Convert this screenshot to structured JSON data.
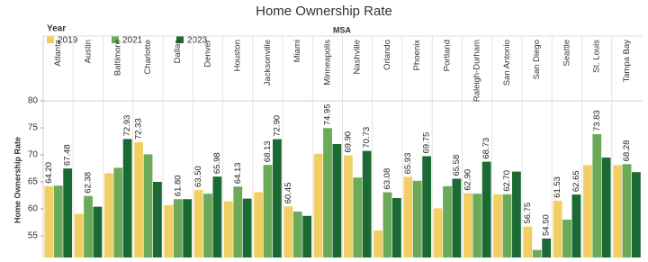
{
  "chart_data": {
    "type": "bar",
    "title": "Home Ownership Rate",
    "legend_title": "Year",
    "column_header": "MSA",
    "y_label": "Home Ownership Rate",
    "categories": [
      "Atlanta",
      "Austin",
      "Baltimore",
      "Charlotte",
      "Dallas",
      "Denver",
      "Houston",
      "Jacksonville",
      "Miami",
      "Minneapolis",
      "Nashville",
      "Orlando",
      "Phoenix",
      "Portland",
      "Raleigh-Durham",
      "San Antonio",
      "San Diego",
      "Seattle",
      "St. Louis",
      "Tampa Bay"
    ],
    "series": [
      {
        "name": "2019",
        "color": "#f2cf63",
        "values": [
          64.2,
          59.1,
          66.6,
          72.33,
          60.7,
          63.5,
          61.4,
          63.1,
          60.45,
          70.2,
          69.9,
          56.0,
          65.93,
          60.1,
          62.9,
          62.7,
          56.75,
          61.53,
          68.1,
          68.1
        ],
        "value_labels": [
          "64.20",
          null,
          null,
          "72.33",
          null,
          "63.50",
          null,
          null,
          "60.45",
          null,
          "69.90",
          null,
          "65.93",
          null,
          "62.90",
          null,
          "56.75",
          "61.53",
          null,
          null
        ]
      },
      {
        "name": "2021",
        "color": "#6aaa58",
        "values": [
          64.3,
          62.38,
          67.6,
          70.1,
          61.8,
          62.8,
          64.13,
          68.13,
          59.5,
          74.95,
          65.8,
          63.08,
          65.2,
          64.2,
          62.8,
          62.7,
          52.4,
          58.0,
          73.83,
          68.28
        ],
        "value_labels": [
          null,
          "62.38",
          null,
          null,
          "61.80",
          null,
          "64.13",
          "68.13",
          null,
          "74.95",
          null,
          "63.08",
          null,
          null,
          null,
          "62.70",
          null,
          null,
          "73.83",
          "68.28"
        ]
      },
      {
        "name": "2023",
        "color": "#1b6a33",
        "values": [
          67.48,
          60.4,
          72.93,
          65.0,
          61.8,
          65.98,
          61.9,
          72.9,
          58.7,
          72.0,
          70.73,
          62.0,
          69.75,
          65.58,
          68.73,
          66.9,
          54.5,
          62.65,
          69.5,
          66.8
        ],
        "value_labels": [
          "67.48",
          null,
          "72.93",
          null,
          null,
          "65.98",
          null,
          "72.90",
          null,
          null,
          "70.73",
          null,
          "69.75",
          "65.58",
          "68.73",
          null,
          "54.50",
          "62.65",
          null,
          null
        ]
      }
    ],
    "ylim": [
      51,
      80
    ],
    "yticks": [
      55,
      60,
      65,
      70,
      75,
      80
    ]
  }
}
